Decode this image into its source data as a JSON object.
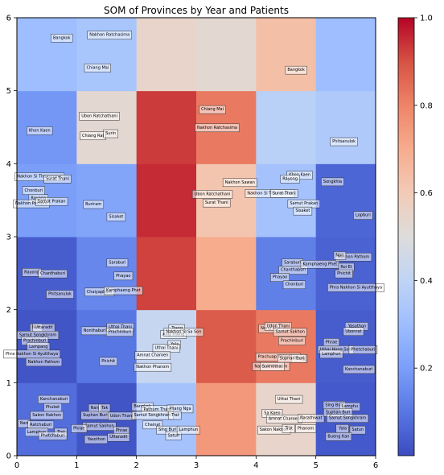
{
  "chart_data": {
    "type": "heatmap",
    "title": "SOM of Provinces by Year and Patients",
    "xlabel": "",
    "ylabel": "",
    "xlim": [
      0,
      6
    ],
    "ylim": [
      0,
      6
    ],
    "x_ticks": [
      0,
      1,
      2,
      3,
      4,
      5,
      6
    ],
    "y_ticks": [
      0,
      1,
      2,
      3,
      4,
      5,
      6
    ],
    "colorbar": {
      "colormap": "coolwarm",
      "range": [
        0,
        1
      ],
      "ticks": [
        0.2,
        0.4,
        0.6,
        0.8,
        1.0
      ],
      "tick_labels": [
        "0.2",
        "0.4",
        "0.6",
        "0.8",
        "1.0"
      ],
      "colors": [
        "#3b4cc0",
        "#5977e3",
        "#7b9ff9",
        "#9ebeff",
        "#c0d4f5",
        "#dddcdc",
        "#f2cbb7",
        "#f7ac8e",
        "#ee8468",
        "#d65244",
        "#b40426"
      ]
    },
    "cells": [
      [
        0.08,
        0.02,
        0.32,
        0.75,
        0.55,
        0.03
      ],
      [
        0.02,
        0.1,
        0.42,
        0.88,
        0.82,
        0.04
      ],
      [
        0.04,
        0.14,
        0.92,
        0.7,
        0.12,
        0.05
      ],
      [
        0.2,
        0.22,
        0.95,
        0.62,
        0.32,
        0.06
      ],
      [
        0.18,
        0.53,
        0.93,
        0.82,
        0.38,
        0.35
      ],
      [
        0.3,
        0.33,
        0.55,
        0.53,
        0.64,
        0.3
      ]
    ],
    "labels": [
      {
        "text": "Bangkok",
        "x": 0.75,
        "y": 5.73
      },
      {
        "text": "Nakhon Ratchasima",
        "x": 1.55,
        "y": 5.77
      },
      {
        "text": "Chiang Mai",
        "x": 1.35,
        "y": 5.32
      },
      {
        "text": "Bangkok",
        "x": 4.67,
        "y": 5.29
      },
      {
        "text": "Khon Kaen",
        "x": 0.38,
        "y": 4.46
      },
      {
        "text": "Ubon Ratchathani",
        "x": 1.38,
        "y": 4.66
      },
      {
        "text": "Chiang Rai",
        "x": 1.27,
        "y": 4.39
      },
      {
        "text": "Surin",
        "x": 1.57,
        "y": 4.42
      },
      {
        "text": "Chiang Mai",
        "x": 3.27,
        "y": 4.75
      },
      {
        "text": "Nakhon Ratchasima",
        "x": 3.35,
        "y": 4.5
      },
      {
        "text": "Phitsanulok",
        "x": 5.47,
        "y": 4.31
      },
      {
        "text": "Nakhon Si Thammarat",
        "x": 0.38,
        "y": 3.83
      },
      {
        "text": "Surat Thani",
        "x": 0.68,
        "y": 3.8
      },
      {
        "text": "Chonburi",
        "x": 0.28,
        "y": 3.64
      },
      {
        "text": "Rayong",
        "x": 0.36,
        "y": 3.53
      },
      {
        "text": "Nakhon Pathom",
        "x": 0.24,
        "y": 3.46
      },
      {
        "text": "Samut Prakan",
        "x": 0.58,
        "y": 3.49
      },
      {
        "text": "Buriram",
        "x": 1.28,
        "y": 3.45
      },
      {
        "text": "Sisaket",
        "x": 1.66,
        "y": 3.28
      },
      {
        "text": "Nakhon Sawan",
        "x": 3.73,
        "y": 3.75
      },
      {
        "text": "Ubon Ratchathani",
        "x": 3.27,
        "y": 3.59
      },
      {
        "text": "Surat Thani",
        "x": 3.34,
        "y": 3.47
      },
      {
        "text": "Khon Kaen",
        "x": 4.73,
        "y": 3.85
      },
      {
        "text": "Rayong",
        "x": 4.57,
        "y": 3.8
      },
      {
        "text": "Nakhon Si Thammarat",
        "x": 4.23,
        "y": 3.6
      },
      {
        "text": "Surat Thani",
        "x": 4.47,
        "y": 3.6
      },
      {
        "text": "Samut Prakan",
        "x": 4.8,
        "y": 3.46
      },
      {
        "text": "Sisaket",
        "x": 4.78,
        "y": 3.36
      },
      {
        "text": "Songkhla",
        "x": 5.28,
        "y": 3.76
      },
      {
        "text": "Lopburi",
        "x": 5.79,
        "y": 3.3
      },
      {
        "text": "Rayong",
        "x": 0.25,
        "y": 2.52
      },
      {
        "text": "Chanthaburi",
        "x": 0.6,
        "y": 2.5
      },
      {
        "text": "Phitsanulok",
        "x": 0.72,
        "y": 2.22
      },
      {
        "text": "Saraburi",
        "x": 1.68,
        "y": 2.65
      },
      {
        "text": "Phayao",
        "x": 1.78,
        "y": 2.47
      },
      {
        "text": "Chaiyaphum",
        "x": 1.38,
        "y": 2.25
      },
      {
        "text": "Kamphaeng Phet",
        "x": 1.78,
        "y": 2.27
      },
      {
        "text": "Saraburi",
        "x": 4.61,
        "y": 2.65
      },
      {
        "text": "Chanthaburi",
        "x": 4.62,
        "y": 2.55
      },
      {
        "text": "Phayao",
        "x": 4.4,
        "y": 2.45
      },
      {
        "text": "Chonburi",
        "x": 4.64,
        "y": 2.35
      },
      {
        "text": "Kamphaeng Phet",
        "x": 5.07,
        "y": 2.63
      },
      {
        "text": "Nakhon Pathom",
        "x": 5.63,
        "y": 2.73
      },
      {
        "text": "Nan",
        "x": 5.4,
        "y": 2.75
      },
      {
        "text": "Roi Et",
        "x": 5.51,
        "y": 2.59
      },
      {
        "text": "Phichit",
        "x": 5.47,
        "y": 2.5
      },
      {
        "text": "Phra Nakhon Si Ayutthaya",
        "x": 5.67,
        "y": 2.31
      },
      {
        "text": "Nan",
        "x": 0.32,
        "y": 1.76
      },
      {
        "text": "Uttaradit",
        "x": 0.45,
        "y": 1.76
      },
      {
        "text": "Samut Songkhram",
        "x": 0.35,
        "y": 1.66
      },
      {
        "text": "Prachinburi",
        "x": 0.3,
        "y": 1.58
      },
      {
        "text": "Lampang",
        "x": 0.36,
        "y": 1.5
      },
      {
        "text": "Phra Nakhon Si Ayutthaya",
        "x": 0.25,
        "y": 1.4
      },
      {
        "text": "Nakhon Pathom",
        "x": 0.45,
        "y": 1.29
      },
      {
        "text": "Nonthaburi",
        "x": 1.3,
        "y": 1.72
      },
      {
        "text": "Uthai Thani",
        "x": 1.73,
        "y": 1.77
      },
      {
        "text": "Prachinburi",
        "x": 1.72,
        "y": 1.7
      },
      {
        "text": "Trang",
        "x": 2.68,
        "y": 1.75
      },
      {
        "text": "Ang Thong",
        "x": 2.62,
        "y": 1.67
      },
      {
        "text": "Nakhon Si Sa Son",
        "x": 2.79,
        "y": 1.7
      },
      {
        "text": "Yala",
        "x": 2.64,
        "y": 1.53
      },
      {
        "text": "Uthai Thani",
        "x": 2.5,
        "y": 1.48
      },
      {
        "text": "Amnat Charoen",
        "x": 2.27,
        "y": 1.38
      },
      {
        "text": "Phichit",
        "x": 1.53,
        "y": 1.3
      },
      {
        "text": "Nakhon Phanom",
        "x": 2.27,
        "y": 1.22
      },
      {
        "text": "Nong Khai",
        "x": 4.25,
        "y": 1.75
      },
      {
        "text": "Udon Thani",
        "x": 4.37,
        "y": 1.78
      },
      {
        "text": "Samut Sakhon",
        "x": 4.57,
        "y": 1.7
      },
      {
        "text": "Prachinburi",
        "x": 4.6,
        "y": 1.58
      },
      {
        "text": "Yasothon",
        "x": 5.69,
        "y": 1.78
      },
      {
        "text": "Ubonrat",
        "x": 5.63,
        "y": 1.71
      },
      {
        "text": "Phrae",
        "x": 5.26,
        "y": 1.56
      },
      {
        "text": "Uthai Hong Son",
        "x": 5.33,
        "y": 1.46
      },
      {
        "text": "Lamphun",
        "x": 5.26,
        "y": 1.4
      },
      {
        "text": "Prachuap Khiri Khan",
        "x": 4.37,
        "y": 1.36
      },
      {
        "text": "Trang",
        "x": 4.73,
        "y": 1.34
      },
      {
        "text": "Suphan Buri",
        "x": 4.6,
        "y": 1.34
      },
      {
        "text": "Phetchaburi",
        "x": 5.79,
        "y": 1.46
      },
      {
        "text": "Nakhon Phanom",
        "x": 4.25,
        "y": 1.23
      },
      {
        "text": "Sukhothai",
        "x": 4.27,
        "y": 1.23
      },
      {
        "text": "Kanchanaburi",
        "x": 5.72,
        "y": 1.19
      },
      {
        "text": "Kanchanaburi",
        "x": 0.62,
        "y": 0.78
      },
      {
        "text": "Phuket",
        "x": 0.6,
        "y": 0.67
      },
      {
        "text": "Sakon Nakhon",
        "x": 0.5,
        "y": 0.56
      },
      {
        "text": "Nan",
        "x": 0.12,
        "y": 0.45
      },
      {
        "text": "Ratchaburi",
        "x": 0.4,
        "y": 0.43
      },
      {
        "text": "Lamphun",
        "x": 0.33,
        "y": 0.33
      },
      {
        "text": "Trat",
        "x": 0.74,
        "y": 0.33
      },
      {
        "text": "Phetchaburi",
        "x": 0.6,
        "y": 0.28
      },
      {
        "text": "Nan",
        "x": 1.3,
        "y": 0.66
      },
      {
        "text": "Tak",
        "x": 1.47,
        "y": 0.66
      },
      {
        "text": "Suphan Buri",
        "x": 1.31,
        "y": 0.56
      },
      {
        "text": "Udon Thani",
        "x": 1.75,
        "y": 0.55
      },
      {
        "text": "Samut Sakhon",
        "x": 1.38,
        "y": 0.41
      },
      {
        "text": "Phrae",
        "x": 1.04,
        "y": 0.38
      },
      {
        "text": "Phrae",
        "x": 1.75,
        "y": 0.35
      },
      {
        "text": "Yasothon",
        "x": 1.33,
        "y": 0.23
      },
      {
        "text": "Uttaradit",
        "x": 1.7,
        "y": 0.26
      },
      {
        "text": "Bangkok",
        "x": 2.1,
        "y": 0.68
      },
      {
        "text": "Pathum Thani",
        "x": 2.35,
        "y": 0.64
      },
      {
        "text": "Phang Nga",
        "x": 2.73,
        "y": 0.65
      },
      {
        "text": "Samut Songkhram",
        "x": 2.27,
        "y": 0.56
      },
      {
        "text": "Trat",
        "x": 2.65,
        "y": 0.56
      },
      {
        "text": "Chainat",
        "x": 2.27,
        "y": 0.43
      },
      {
        "text": "Sing Buri",
        "x": 2.52,
        "y": 0.36
      },
      {
        "text": "Satun",
        "x": 2.62,
        "y": 0.28
      },
      {
        "text": "Lamphun",
        "x": 2.87,
        "y": 0.36
      },
      {
        "text": "Uthai Thani",
        "x": 4.55,
        "y": 0.78
      },
      {
        "text": "Sa Kaeo",
        "x": 4.27,
        "y": 0.59
      },
      {
        "text": "Amnat Charoen",
        "x": 4.47,
        "y": 0.51
      },
      {
        "text": "Narathiwat",
        "x": 4.92,
        "y": 0.52
      },
      {
        "text": "Sakon Nakhon",
        "x": 4.3,
        "y": 0.36
      },
      {
        "text": "Phanom",
        "x": 4.83,
        "y": 0.38
      },
      {
        "text": "Trat",
        "x": 4.55,
        "y": 0.38
      },
      {
        "text": "Sing Buri",
        "x": 5.31,
        "y": 0.7
      },
      {
        "text": "Lamphu",
        "x": 5.57,
        "y": 0.68
      },
      {
        "text": "Suphan Buri",
        "x": 5.37,
        "y": 0.6
      },
      {
        "text": "Samut Songkhram",
        "x": 5.53,
        "y": 0.52
      },
      {
        "text": "Yala",
        "x": 5.45,
        "y": 0.38
      },
      {
        "text": "Satun",
        "x": 5.7,
        "y": 0.36
      },
      {
        "text": "Bueng Kan",
        "x": 5.38,
        "y": 0.27
      }
    ]
  }
}
